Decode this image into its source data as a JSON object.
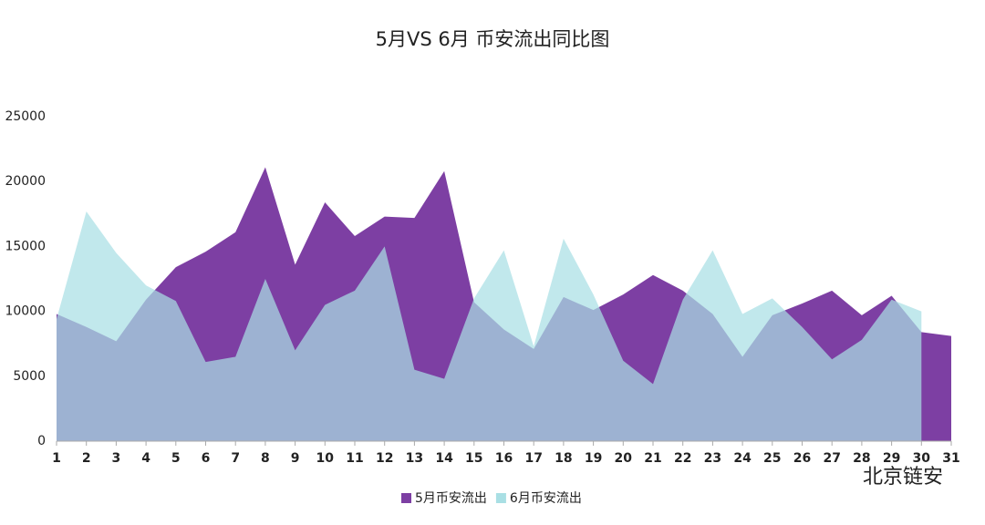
{
  "chart_data": {
    "type": "area",
    "title": "5月VS 6月 币安流出同比图",
    "categories": [
      "1",
      "2",
      "3",
      "4",
      "5",
      "6",
      "7",
      "8",
      "9",
      "10",
      "11",
      "12",
      "13",
      "14",
      "15",
      "16",
      "17",
      "18",
      "19",
      "20",
      "21",
      "22",
      "23",
      "24",
      "25",
      "26",
      "27",
      "28",
      "29",
      "30",
      "31"
    ],
    "series": [
      {
        "name": "5月币安流出",
        "color": "#7d3fa3",
        "values": [
          9800,
          8800,
          7700,
          10900,
          13400,
          14600,
          16100,
          21100,
          13600,
          18400,
          15800,
          17300,
          17200,
          20800,
          10700,
          8600,
          7100,
          11100,
          10100,
          11300,
          12800,
          11600,
          9800,
          6500,
          9700,
          10600,
          11600,
          9700,
          11200,
          8400,
          8100
        ]
      },
      {
        "name": "6月币安流出",
        "color": "#a9dfe4",
        "values": [
          9400,
          17700,
          14500,
          12000,
          10800,
          6100,
          6500,
          12500,
          7000,
          10500,
          11600,
          15000,
          5500,
          4800,
          11000,
          14700,
          7300,
          15600,
          11300,
          6200,
          4400,
          10900,
          14700,
          9800,
          11000,
          8800,
          6300,
          7800,
          10900,
          10000,
          null
        ]
      }
    ],
    "ylim": [
      0,
      25000
    ],
    "yticks": [
      0,
      5000,
      10000,
      15000,
      20000,
      25000
    ],
    "legend": "bottom",
    "watermark": "北京链安"
  }
}
